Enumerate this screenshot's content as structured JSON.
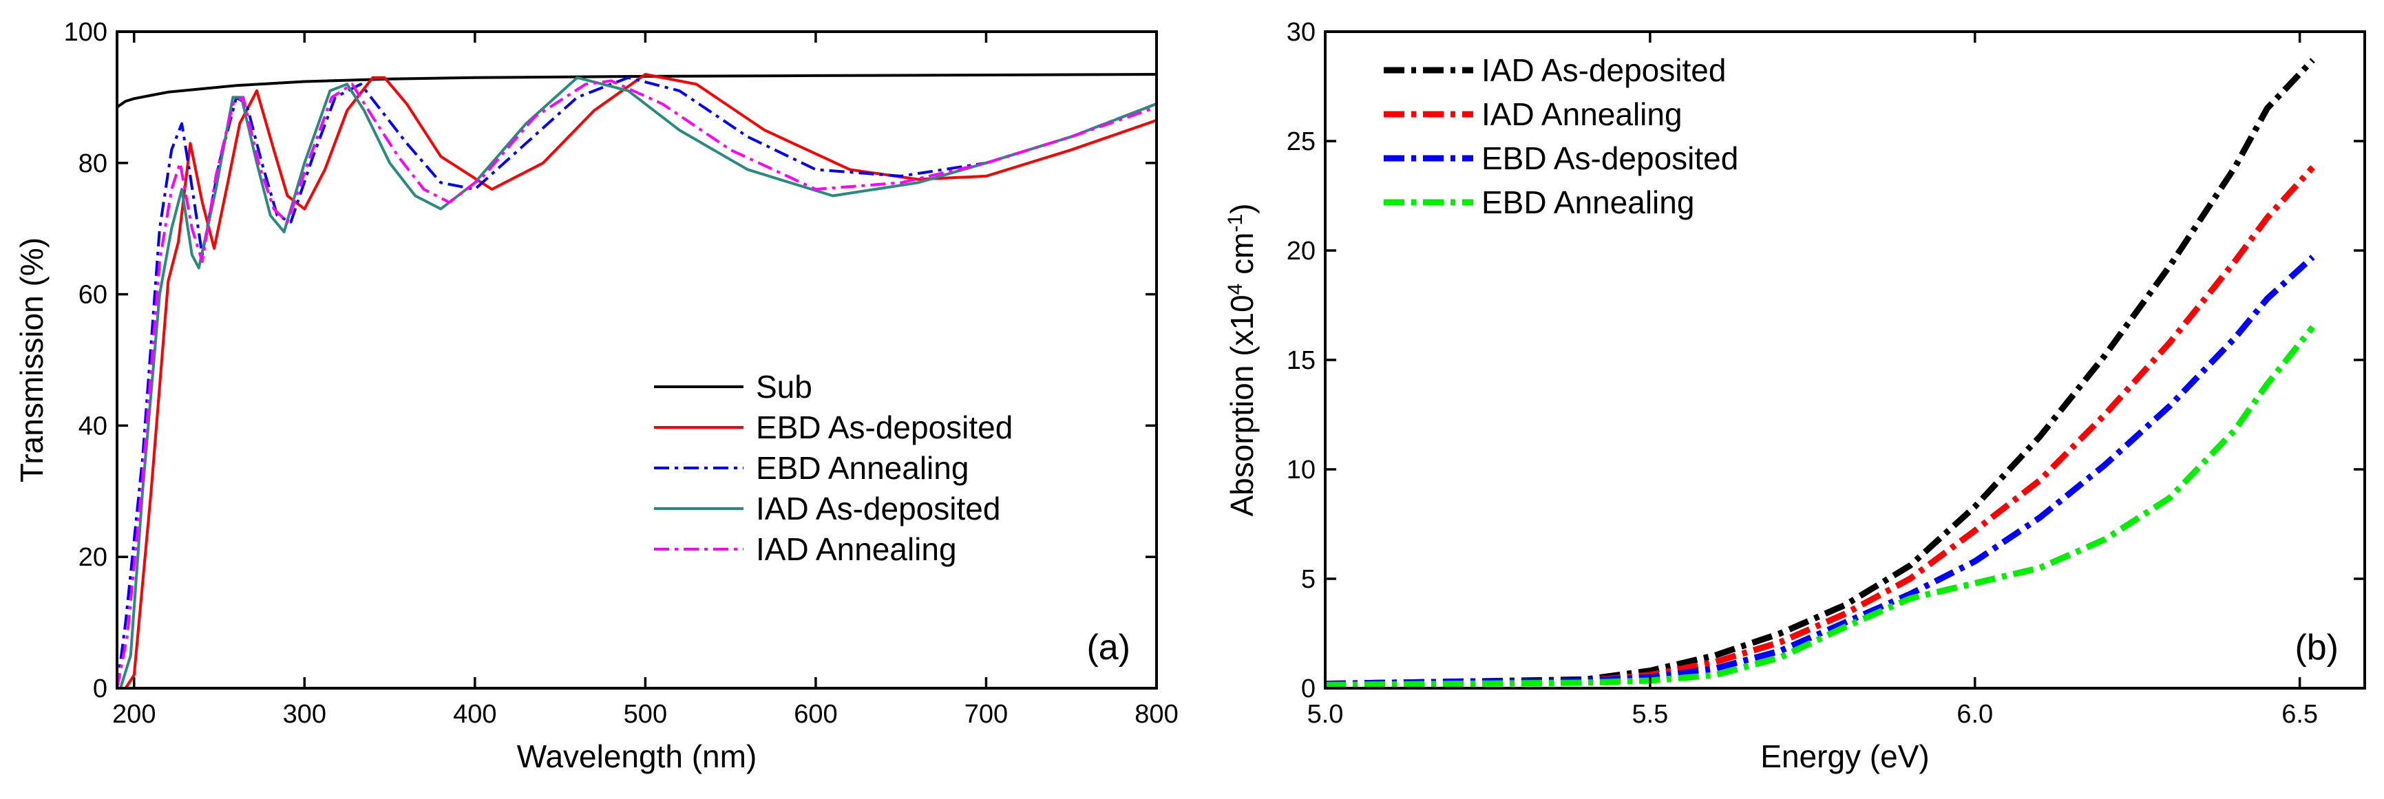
{
  "chart_data": [
    {
      "type": "line",
      "panel_label": "(a)",
      "xlabel": "Wavelength (nm)",
      "ylabel": "Transmission (%)",
      "xlim": [
        190,
        800
      ],
      "ylim": [
        0,
        100
      ],
      "xticks": [
        200,
        300,
        400,
        500,
        600,
        700,
        800
      ],
      "yticks": [
        0,
        20,
        40,
        60,
        80,
        100
      ],
      "legend_position": "center-right",
      "series": [
        {
          "name": "Sub",
          "color": "#000000",
          "dash": "solid",
          "x": [
            190,
            195,
            200,
            210,
            220,
            240,
            260,
            280,
            300,
            350,
            400,
            500,
            600,
            700,
            800
          ],
          "y": [
            88.5,
            89.4,
            89.8,
            90.3,
            90.8,
            91.3,
            91.8,
            92.1,
            92.4,
            92.8,
            93.0,
            93.2,
            93.3,
            93.4,
            93.5
          ]
        },
        {
          "name": "EBD As-deposited",
          "color": "#ff0000",
          "dash": "solid",
          "x": [
            195,
            200,
            210,
            220,
            226,
            233,
            240,
            247,
            255,
            262,
            272,
            282,
            290,
            300,
            312,
            325,
            340,
            347,
            360,
            380,
            410,
            440,
            470,
            500,
            530,
            570,
            620,
            660,
            700,
            750,
            800
          ],
          "y": [
            0,
            2,
            30,
            62,
            68,
            83,
            74,
            67,
            77,
            86,
            91,
            82,
            75,
            73,
            79,
            88,
            93,
            93,
            89,
            81,
            76,
            80,
            88,
            93.5,
            92,
            85,
            79,
            77.5,
            78,
            82,
            86.5
          ]
        },
        {
          "name": "EBD Annealing",
          "color": "#0000ff",
          "dash": "dashdot",
          "x": [
            190,
            195,
            205,
            215,
            222,
            228,
            233,
            240,
            250,
            260,
            266,
            275,
            284,
            292,
            305,
            318,
            333,
            345,
            360,
            380,
            400,
            430,
            460,
            490,
            520,
            560,
            600,
            650,
            700,
            750,
            800
          ],
          "y": [
            0,
            10,
            35,
            70,
            82,
            86,
            78,
            66,
            80,
            90,
            89,
            80,
            72,
            71,
            81,
            90,
            92,
            88,
            83,
            77,
            76,
            83,
            90,
            93,
            91,
            84,
            79,
            78,
            80,
            84,
            89
          ]
        },
        {
          "name": "IAD As-deposited",
          "color": "#2a8a80",
          "dash": "solid",
          "x": [
            192,
            198,
            205,
            215,
            222,
            228,
            234,
            238,
            248,
            258,
            263,
            272,
            280,
            288,
            300,
            315,
            325,
            335,
            350,
            365,
            380,
            400,
            430,
            460,
            490,
            520,
            560,
            610,
            660,
            700,
            750,
            800
          ],
          "y": [
            0,
            5,
            30,
            60,
            70,
            76,
            66,
            64,
            76,
            90,
            90,
            80,
            72,
            69.5,
            80,
            91,
            92,
            88,
            80,
            75,
            73,
            77,
            86,
            93,
            91,
            85,
            79,
            75,
            77,
            80,
            84,
            89
          ]
        },
        {
          "name": "IAD Annealing",
          "color": "#ff00ff",
          "dash": "dashdot",
          "x": [
            190,
            196,
            205,
            215,
            222,
            227,
            234,
            240,
            248,
            258,
            264,
            273,
            282,
            290,
            302,
            316,
            328,
            340,
            355,
            370,
            385,
            405,
            435,
            465,
            480,
            510,
            550,
            600,
            650,
            700,
            750,
            800
          ],
          "y": [
            0,
            8,
            32,
            65,
            76,
            80,
            70,
            65,
            78,
            89,
            90,
            80,
            73,
            71,
            80,
            90,
            92,
            87,
            81,
            76,
            74,
            78,
            87,
            92,
            92.5,
            89,
            82,
            76,
            77,
            80,
            84,
            88.5
          ]
        }
      ]
    },
    {
      "type": "line",
      "panel_label": "(b)",
      "xlabel": "Energy (eV)",
      "ylabel_prefix": "Absorption (x10",
      "ylabel_exp1": "4",
      "ylabel_mid": " cm",
      "ylabel_exp2": "-1",
      "ylabel_suffix": ")",
      "xlim": [
        5.0,
        6.6
      ],
      "ylim": [
        0,
        30
      ],
      "xticks": [
        5.0,
        5.5,
        6.0,
        6.5
      ],
      "xtick_labels": [
        "5.0",
        "5.5",
        "6.0",
        "6.5"
      ],
      "yticks": [
        0,
        5,
        10,
        15,
        20,
        25,
        30
      ],
      "legend_position": "top-left",
      "series": [
        {
          "name": "IAD As-deposited",
          "color": "#000000",
          "dash": "dashdot",
          "x": [
            5.0,
            5.2,
            5.4,
            5.5,
            5.6,
            5.7,
            5.8,
            5.9,
            6.0,
            6.1,
            6.2,
            6.3,
            6.4,
            6.45,
            6.52
          ],
          "y": [
            0.2,
            0.3,
            0.4,
            0.8,
            1.5,
            2.5,
            3.8,
            5.6,
            8.3,
            11.5,
            15.2,
            19.3,
            23.8,
            26.5,
            28.7
          ]
        },
        {
          "name": "IAD Annealing",
          "color": "#ff0000",
          "dash": "dashdot",
          "x": [
            5.0,
            5.2,
            5.4,
            5.5,
            5.6,
            5.7,
            5.8,
            5.9,
            6.0,
            6.1,
            6.2,
            6.3,
            6.4,
            6.45,
            6.52
          ],
          "y": [
            0.2,
            0.3,
            0.35,
            0.6,
            1.2,
            2.1,
            3.4,
            5.0,
            7.2,
            9.5,
            12.5,
            15.8,
            19.5,
            21.5,
            23.8
          ]
        },
        {
          "name": "EBD As-deposited",
          "color": "#0000ff",
          "dash": "dashdot",
          "x": [
            5.0,
            5.2,
            5.4,
            5.5,
            5.6,
            5.7,
            5.8,
            5.9,
            6.0,
            6.1,
            6.2,
            6.3,
            6.4,
            6.45,
            6.52
          ],
          "y": [
            0.2,
            0.3,
            0.35,
            0.5,
            0.9,
            1.7,
            3.0,
            4.3,
            5.8,
            7.8,
            10.2,
            12.9,
            16.0,
            17.8,
            19.7
          ]
        },
        {
          "name": "EBD Annealing",
          "color": "#00ee00",
          "dash": "dashdot",
          "x": [
            5.0,
            5.2,
            5.4,
            5.5,
            5.6,
            5.7,
            5.8,
            5.9,
            6.0,
            6.1,
            6.2,
            6.3,
            6.4,
            6.45,
            6.52
          ],
          "y": [
            0.15,
            0.2,
            0.25,
            0.35,
            0.6,
            1.4,
            2.8,
            4.1,
            4.8,
            5.5,
            6.8,
            8.7,
            11.8,
            13.9,
            16.5
          ]
        }
      ]
    }
  ]
}
